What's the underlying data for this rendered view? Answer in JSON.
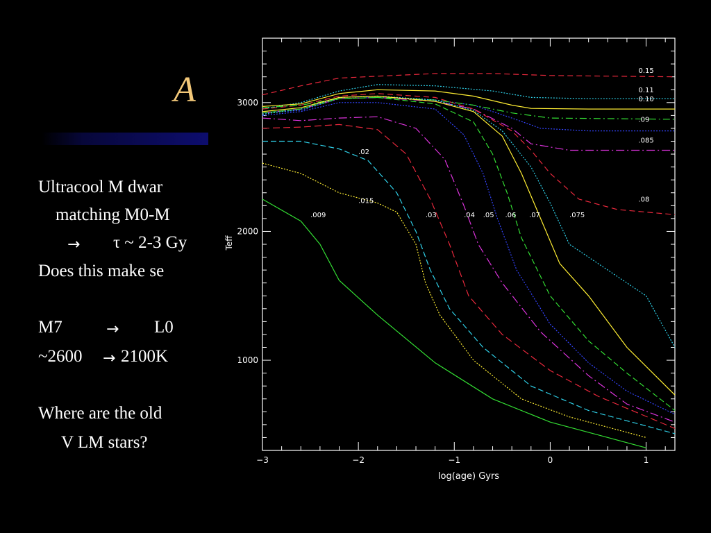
{
  "slide": {
    "title_visible": "A",
    "lines": [
      "Ultracool M dwar",
      "matching M0-M",
      "τ ~ 2-3 Gy",
      "Does this make se",
      "M7",
      "L0",
      "~2600",
      "2100K",
      "Where are the old",
      "V LM stars?"
    ],
    "arrow_glyph": "→",
    "colors": {
      "background": "#000000",
      "title": "#f3c879",
      "text": "#ffffff",
      "title_bar": "#0d0d6e"
    }
  },
  "chart_data": {
    "type": "line",
    "xlabel": "log(age) Gyrs",
    "ylabel": "Teff",
    "xlim": [
      -3,
      1.3
    ],
    "ylim": [
      300,
      3500
    ],
    "x_ticks": [
      -3,
      -2,
      -1,
      0,
      1
    ],
    "x_tick_labels": [
      "−3",
      "−2",
      "−1",
      "0",
      "1"
    ],
    "y_ticks": [
      1000,
      2000,
      3000
    ],
    "y_tick_labels": [
      "1000",
      "2000",
      "3000"
    ],
    "series": [
      {
        "name": ".15",
        "color": "#e8283c",
        "dash": "8,5",
        "points": [
          [
            -3,
            3060
          ],
          [
            -2.6,
            3130
          ],
          [
            -2.2,
            3190
          ],
          [
            -1.8,
            3205
          ],
          [
            -1.2,
            3225
          ],
          [
            -0.6,
            3225
          ],
          [
            0,
            3210
          ],
          [
            1.3,
            3200
          ]
        ]
      },
      {
        "name": ".11",
        "color": "#2fd0e8",
        "dash": "2,2",
        "points": [
          [
            -3,
            2950
          ],
          [
            -2.6,
            3000
          ],
          [
            -2.2,
            3090
          ],
          [
            -1.8,
            3140
          ],
          [
            -1.2,
            3130
          ],
          [
            -0.6,
            3090
          ],
          [
            -0.2,
            3040
          ],
          [
            0.4,
            3030
          ],
          [
            1.3,
            3030
          ]
        ]
      },
      {
        "name": ".10",
        "color": "#ffee33",
        "dash": "",
        "points": [
          [
            -3,
            2970
          ],
          [
            -2.6,
            2990
          ],
          [
            -2.2,
            3070
          ],
          [
            -1.8,
            3100
          ],
          [
            -1.2,
            3090
          ],
          [
            -0.8,
            3050
          ],
          [
            -0.4,
            2980
          ],
          [
            -0.2,
            2955
          ],
          [
            0.4,
            2950
          ],
          [
            1.3,
            2950
          ]
        ]
      },
      {
        "name": ".09",
        "color": "#3344ff",
        "dash": "2,2",
        "points": [
          [
            -3,
            2920
          ],
          [
            -2.6,
            2940
          ],
          [
            -2.2,
            3030
          ],
          [
            -1.8,
            3040
          ],
          [
            -1.2,
            3020
          ],
          [
            -0.8,
            2980
          ],
          [
            -0.4,
            2880
          ],
          [
            -0.1,
            2800
          ],
          [
            0.4,
            2780
          ],
          [
            1.3,
            2780
          ]
        ]
      },
      {
        "name": ".085",
        "color": "#dd33dd",
        "dash": "12,4,2,4",
        "points": [
          [
            -3,
            2920
          ],
          [
            -2.6,
            2950
          ],
          [
            -2.2,
            3030
          ],
          [
            -1.8,
            3040
          ],
          [
            -1.2,
            3010
          ],
          [
            -0.8,
            2950
          ],
          [
            -0.4,
            2800
          ],
          [
            -0.2,
            2680
          ],
          [
            0.2,
            2630
          ],
          [
            1.3,
            2630
          ]
        ]
      },
      {
        "name": ".08",
        "color": "#e8283c",
        "dash": "8,5",
        "points": [
          [
            -3,
            2950
          ],
          [
            -2.6,
            2980
          ],
          [
            -2.2,
            3050
          ],
          [
            -1.8,
            3070
          ],
          [
            -1.2,
            3040
          ],
          [
            -0.8,
            2950
          ],
          [
            -0.4,
            2780
          ],
          [
            -0.2,
            2630
          ],
          [
            0,
            2450
          ],
          [
            0.3,
            2250
          ],
          [
            0.7,
            2170
          ],
          [
            1.3,
            2130
          ]
        ]
      },
      {
        "name": "",
        "color": "#33dd33",
        "dash": "10,4,2,4",
        "points": [
          [
            -3,
            2960
          ],
          [
            -2.6,
            2980
          ],
          [
            -2.2,
            3030
          ],
          [
            -1.8,
            3040
          ],
          [
            -1.2,
            3020
          ],
          [
            -0.8,
            2980
          ],
          [
            -0.4,
            2920
          ],
          [
            0,
            2880
          ],
          [
            1.3,
            2870
          ]
        ]
      },
      {
        "name": ".075",
        "color": "#2fd0e8",
        "dash": "2,2",
        "points": [
          [
            -3,
            2910
          ],
          [
            -2.6,
            2950
          ],
          [
            -2.2,
            3040
          ],
          [
            -1.8,
            3050
          ],
          [
            -1.2,
            3020
          ],
          [
            -0.8,
            2940
          ],
          [
            -0.5,
            2780
          ],
          [
            -0.2,
            2500
          ],
          [
            0,
            2220
          ],
          [
            0.2,
            1900
          ],
          [
            0.6,
            1700
          ],
          [
            1,
            1500
          ],
          [
            1.3,
            1100
          ]
        ]
      },
      {
        "name": ".07",
        "color": "#ffee33",
        "dash": "",
        "points": [
          [
            -3,
            2930
          ],
          [
            -2.6,
            2960
          ],
          [
            -2.2,
            3040
          ],
          [
            -1.8,
            3050
          ],
          [
            -1.2,
            3010
          ],
          [
            -0.8,
            2930
          ],
          [
            -0.5,
            2740
          ],
          [
            -0.3,
            2450
          ],
          [
            -0.1,
            2100
          ],
          [
            0.1,
            1750
          ],
          [
            0.4,
            1500
          ],
          [
            0.8,
            1100
          ],
          [
            1.3,
            730
          ]
        ]
      },
      {
        "name": ".06",
        "color": "#33dd33",
        "dash": "8,4",
        "points": [
          [
            -3,
            2920
          ],
          [
            -2.6,
            2950
          ],
          [
            -2.2,
            3030
          ],
          [
            -1.8,
            3040
          ],
          [
            -1.2,
            2990
          ],
          [
            -0.8,
            2850
          ],
          [
            -0.6,
            2600
          ],
          [
            -0.45,
            2300
          ],
          [
            -0.3,
            1950
          ],
          [
            0,
            1500
          ],
          [
            0.4,
            1150
          ],
          [
            0.8,
            900
          ],
          [
            1.3,
            610
          ]
        ]
      },
      {
        "name": ".05",
        "color": "#3344ff",
        "dash": "2,2",
        "points": [
          [
            -3,
            2900
          ],
          [
            -2.6,
            2930
          ],
          [
            -2.2,
            3000
          ],
          [
            -1.8,
            3000
          ],
          [
            -1.2,
            2950
          ],
          [
            -0.9,
            2750
          ],
          [
            -0.7,
            2450
          ],
          [
            -0.55,
            2100
          ],
          [
            -0.35,
            1700
          ],
          [
            0,
            1280
          ],
          [
            0.4,
            980
          ],
          [
            0.8,
            760
          ],
          [
            1.3,
            580
          ]
        ]
      },
      {
        "name": ".04",
        "color": "#dd33dd",
        "dash": "12,4,2,4",
        "points": [
          [
            -3,
            2880
          ],
          [
            -2.6,
            2860
          ],
          [
            -2.2,
            2880
          ],
          [
            -1.8,
            2890
          ],
          [
            -1.4,
            2800
          ],
          [
            -1.1,
            2560
          ],
          [
            -0.9,
            2200
          ],
          [
            -0.75,
            1900
          ],
          [
            -0.5,
            1600
          ],
          [
            -0.1,
            1220
          ],
          [
            0.4,
            880
          ],
          [
            0.8,
            660
          ],
          [
            1.3,
            520
          ]
        ]
      },
      {
        "name": ".03",
        "color": "#e8283c",
        "dash": "10,5",
        "points": [
          [
            -3,
            2800
          ],
          [
            -2.6,
            2810
          ],
          [
            -2.2,
            2830
          ],
          [
            -1.8,
            2790
          ],
          [
            -1.5,
            2600
          ],
          [
            -1.25,
            2250
          ],
          [
            -1.05,
            1900
          ],
          [
            -0.85,
            1500
          ],
          [
            -0.5,
            1200
          ],
          [
            0,
            920
          ],
          [
            0.5,
            720
          ],
          [
            1.3,
            470
          ]
        ]
      },
      {
        "name": ".02",
        "color": "#2fd0e8",
        "dash": "8,4",
        "points": [
          [
            -3,
            2700
          ],
          [
            -2.6,
            2700
          ],
          [
            -2.2,
            2640
          ],
          [
            -1.9,
            2550
          ],
          [
            -1.6,
            2300
          ],
          [
            -1.4,
            2000
          ],
          [
            -1.25,
            1700
          ],
          [
            -1.05,
            1400
          ],
          [
            -0.7,
            1100
          ],
          [
            -0.2,
            800
          ],
          [
            0.4,
            610
          ],
          [
            1.3,
            430
          ]
        ]
      },
      {
        "name": ".015",
        "color": "#ffee33",
        "dash": "2,2",
        "points": [
          [
            -3,
            2530
          ],
          [
            -2.6,
            2450
          ],
          [
            -2.2,
            2300
          ],
          [
            -1.8,
            2220
          ],
          [
            -1.6,
            2150
          ],
          [
            -1.4,
            1900
          ],
          [
            -1.3,
            1600
          ],
          [
            -1.15,
            1350
          ],
          [
            -0.8,
            1000
          ],
          [
            -0.3,
            700
          ],
          [
            0.2,
            560
          ],
          [
            1,
            400
          ]
        ]
      },
      {
        "name": ".009",
        "color": "#33dd33",
        "dash": "",
        "points": [
          [
            -3,
            2250
          ],
          [
            -2.6,
            2080
          ],
          [
            -2.4,
            1900
          ],
          [
            -2.2,
            1620
          ],
          [
            -1.8,
            1350
          ],
          [
            -1.2,
            980
          ],
          [
            -0.6,
            700
          ],
          [
            0,
            520
          ],
          [
            0.5,
            420
          ],
          [
            1,
            320
          ]
        ]
      }
    ],
    "curve_labels": [
      {
        "text": "0.15",
        "x": 0.92,
        "y": 3230
      },
      {
        "text": "0.11",
        "x": 0.92,
        "y": 3080
      },
      {
        "text": "0.10",
        "x": 0.92,
        "y": 3010
      },
      {
        "text": ".09",
        "x": 0.92,
        "y": 2850
      },
      {
        "text": ".085",
        "x": 0.92,
        "y": 2690
      },
      {
        "text": ".08",
        "x": 0.92,
        "y": 2230
      },
      {
        "text": ".02",
        "x": -2.0,
        "y": 2600
      },
      {
        "text": ".015",
        "x": -2.0,
        "y": 2220
      },
      {
        "text": ".009",
        "x": -2.5,
        "y": 2110
      },
      {
        "text": ".03",
        "x": -1.3,
        "y": 2110
      },
      {
        "text": ".04",
        "x": -0.9,
        "y": 2110
      },
      {
        "text": ".05",
        "x": -0.7,
        "y": 2110
      },
      {
        "text": ".06",
        "x": -0.47,
        "y": 2110
      },
      {
        "text": ".07",
        "x": -0.22,
        "y": 2110
      },
      {
        "text": ".075",
        "x": 0.2,
        "y": 2110
      }
    ],
    "grid": false
  }
}
